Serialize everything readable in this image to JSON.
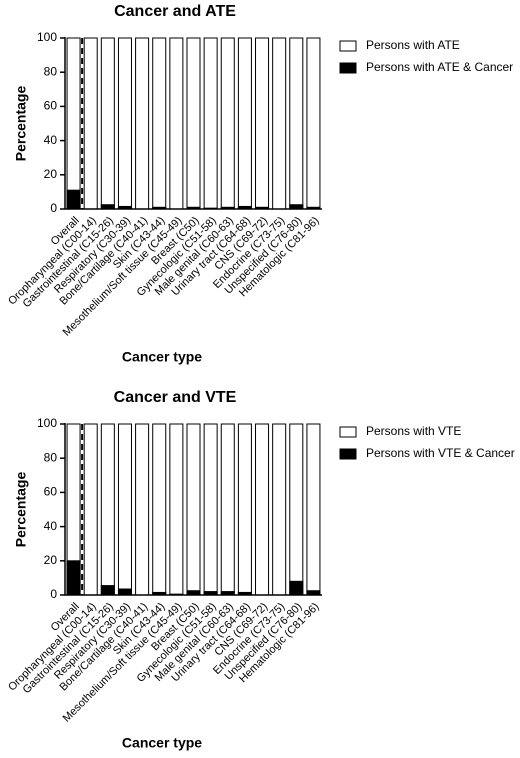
{
  "chart_data": [
    {
      "type": "bar",
      "title": "Cancer and ATE",
      "x_label": "Cancer type",
      "y_label": "Percentage",
      "categories": [
        "Overall",
        "Oropharyngeal (C00-14)",
        "Gastrointestinal (C15-26)",
        "Respiratory (C30-39)",
        "Bone/Cartilage (C40-41)",
        "Skin (C43-44)",
        "Mesothelium/Soft tissue (C45-49)",
        "Breast (C50)",
        "Gynecologic (C51-58)",
        "Male genital (C60-63)",
        "Urinary tract (C64-68)",
        "CNS (C69-72)",
        "Endocrine (C73-75)",
        "Unspecified (C76-80)",
        "Hematologic (C81-96)"
      ],
      "series": [
        {
          "name": "Persons with ATE",
          "color": "#ffffff",
          "values": [
            100,
            100,
            100,
            100,
            100,
            100,
            100,
            100,
            100,
            100,
            100,
            100,
            100,
            100,
            100
          ]
        },
        {
          "name": "Persons with ATE & Cancer",
          "color": "#000000",
          "values": [
            11,
            0,
            2.5,
            1.5,
            0,
            1,
            0,
            1,
            0.5,
            1,
            1.5,
            1,
            0,
            2.5,
            1
          ]
        }
      ],
      "ylim": [
        0,
        100
      ],
      "yticks": [
        0,
        20,
        40,
        60,
        80,
        100
      ]
    },
    {
      "type": "bar",
      "title": "Cancer and VTE",
      "x_label": "Cancer type",
      "y_label": "Percentage",
      "categories": [
        "Overall",
        "Oropharyngeal (C00-14)",
        "Gastrointestinal (C15-26)",
        "Respiratory (C30-39)",
        "Bone/Cartilage (C40-41)",
        "Skin (C43-44)",
        "Mesothelium/Soft tissue (C45-49)",
        "Breast (C50)",
        "Gynecologic (C51-58)",
        "Male genital (C60-63)",
        "Urinary tract (C64-68)",
        "CNS (C69-72)",
        "Endocrine (C73-75)",
        "Unspecified (C76-80)",
        "Hematologic (C81-96)"
      ],
      "series": [
        {
          "name": "Persons with VTE",
          "color": "#ffffff",
          "values": [
            100,
            100,
            100,
            100,
            100,
            100,
            100,
            100,
            100,
            100,
            100,
            100,
            100,
            100,
            100
          ]
        },
        {
          "name": "Persons with VTE & Cancer",
          "color": "#000000",
          "values": [
            20,
            0,
            5.5,
            3.5,
            0,
            1.5,
            0.5,
            2.5,
            2,
            2,
            1.5,
            0,
            0,
            8,
            2.5
          ]
        }
      ],
      "ylim": [
        0,
        100
      ],
      "yticks": [
        0,
        20,
        40,
        60,
        80,
        100
      ]
    }
  ]
}
